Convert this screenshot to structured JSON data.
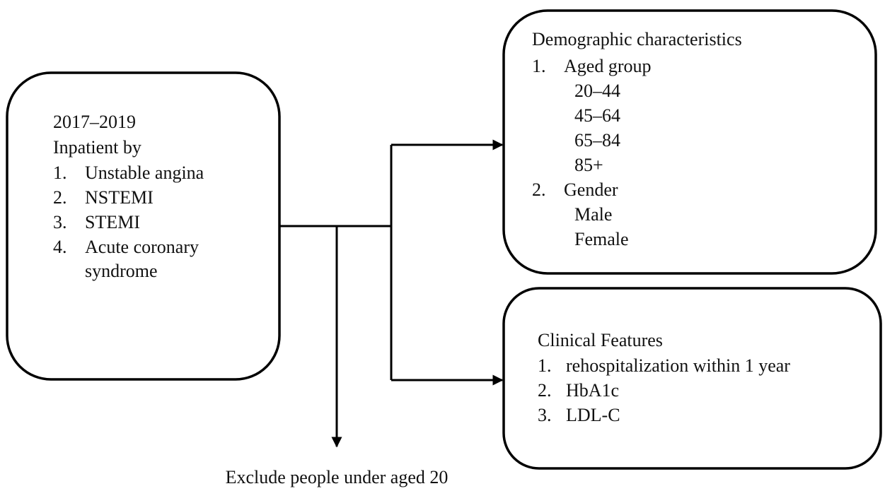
{
  "source": {
    "lines": [
      "2017–2019",
      "Inpatient by"
    ],
    "items": [
      {
        "marker": "1.",
        "lines": [
          "Unstable angina"
        ]
      },
      {
        "marker": "2.",
        "lines": [
          "NSTEMI"
        ]
      },
      {
        "marker": "3.",
        "lines": [
          "STEMI"
        ]
      },
      {
        "marker": "4.",
        "lines": [
          "Acute coronary",
          "syndrome"
        ]
      }
    ]
  },
  "demographics": {
    "title": "Demographic characteristics",
    "items": [
      {
        "marker": "1.",
        "text": "Aged group",
        "sub": [
          "20–44",
          "45–64",
          "65–84",
          "85+"
        ]
      },
      {
        "marker": "2.",
        "text": "Gender",
        "sub": [
          "Male",
          "Female"
        ]
      }
    ]
  },
  "clinical": {
    "title": "Clinical Features",
    "items": [
      {
        "marker": "1.",
        "text": "rehospitalization within 1 year"
      },
      {
        "marker": "2.",
        "text": "HbA1c"
      },
      {
        "marker": "3.",
        "text": "LDL-C"
      }
    ]
  },
  "exclusion": "Exclude people under aged 20"
}
